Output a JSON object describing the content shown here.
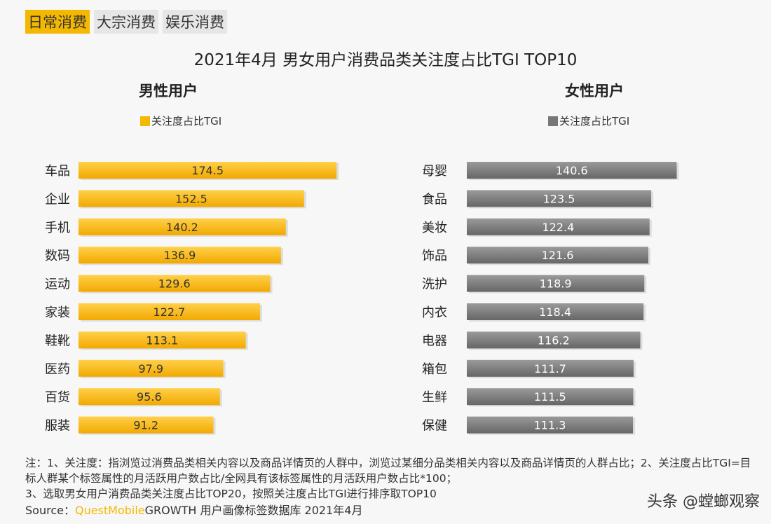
{
  "tabs": [
    {
      "label": "日常消费",
      "active": true
    },
    {
      "label": "大宗消费",
      "active": false
    },
    {
      "label": "娱乐消费",
      "active": false
    }
  ],
  "chart_data": [
    {
      "type": "bar",
      "orientation": "horizontal",
      "title": "2021年4月 男女用户消费品类关注度占比TGI TOP10",
      "subtitle": "男性用户",
      "legend": "关注度占比TGI",
      "color": "#f5b800",
      "categories": [
        "车品",
        "企业",
        "手机",
        "数码",
        "运动",
        "家装",
        "鞋靴",
        "医药",
        "百货",
        "服装"
      ],
      "values": [
        174.5,
        152.5,
        140.2,
        136.9,
        129.6,
        122.7,
        113.1,
        97.9,
        95.6,
        91.2
      ]
    },
    {
      "type": "bar",
      "orientation": "horizontal",
      "subtitle": "女性用户",
      "legend": "关注度占比TGI",
      "color": "#777777",
      "categories": [
        "母婴",
        "食品",
        "美妆",
        "饰品",
        "洗护",
        "内衣",
        "电器",
        "箱包",
        "生鲜",
        "保健"
      ],
      "values": [
        140.6,
        123.5,
        122.4,
        121.6,
        118.9,
        118.4,
        116.2,
        111.7,
        111.5,
        111.3
      ]
    }
  ],
  "notes": [
    "注：1、关注度：指浏览过消费品类相关内容以及商品详情页的人群中，浏览过某细分品类相关内容以及商品详情页的人群占比；2、关注度占比TGI=目标人群某个标签属性的月活跃用户数占比/全网具有该标签属性的月活跃用户数占比*100；",
    "3、选取男女用户消费品类关注度占比TOP20，按照关注度占比TGI进行排序取TOP10"
  ],
  "source": {
    "prefix": "Source：",
    "brand": "QuestMobile",
    "rest": "GROWTH 用户画像标签数据库 2021年4月"
  },
  "watermark": "头条 @螳螂观察"
}
